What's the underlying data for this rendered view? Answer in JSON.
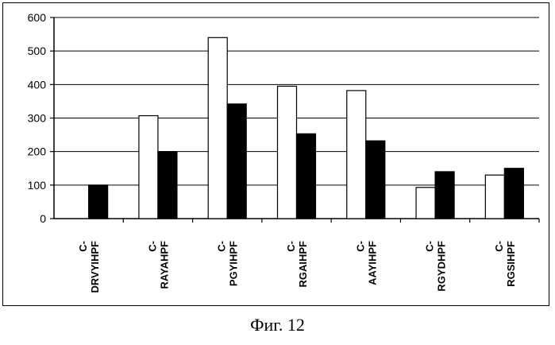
{
  "chart_data": {
    "type": "bar",
    "categories": [
      [
        "C-",
        "DRVYIHPF"
      ],
      [
        "C-",
        "RAYAHPF"
      ],
      [
        "C-",
        "PGYIHPF"
      ],
      [
        "C-",
        "RGAIHPF"
      ],
      [
        "C-",
        "AAYIHPF"
      ],
      [
        "C-",
        "RGYDHPF"
      ],
      [
        "C-",
        "RGSIHPF"
      ]
    ],
    "series": [
      {
        "values": [
          0,
          307,
          540,
          395,
          382,
          93,
          130
        ],
        "color": "#ffffff"
      },
      {
        "values": [
          100,
          200,
          342,
          253,
          232,
          140,
          150
        ],
        "color": "#000000"
      }
    ],
    "ylim": [
      0,
      600
    ],
    "yticks": [
      0,
      100,
      200,
      300,
      400,
      500,
      600
    ],
    "grid": true,
    "legend": "none"
  },
  "caption": "Фиг. 12"
}
